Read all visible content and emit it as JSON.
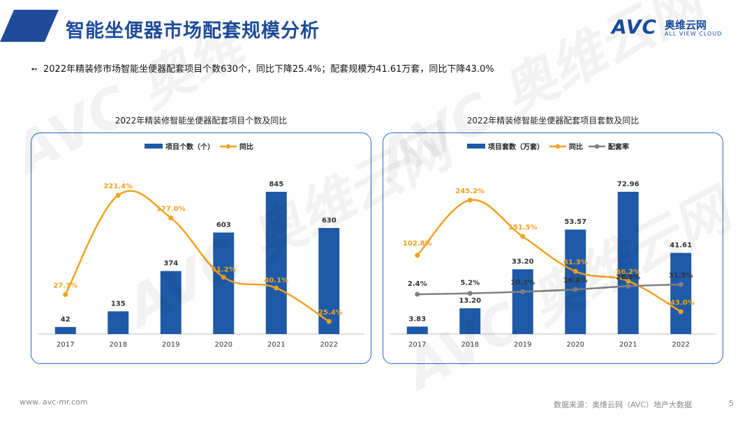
{
  "slide": {
    "title": "智能坐便器市场配套规模分析",
    "summary": "2022年精装修市场智能坐便器配套项目个数630个，同比下降25.4%；配套规模为41.61万套，同比下降43.0%",
    "bullet_icon": "arrow-bullet-icon",
    "logo": {
      "brand": "AVC",
      "cn": "奥维云网",
      "en": "ALL VIEW CLOUD"
    },
    "footer_url": "www. avc-mr.com",
    "footer_source": "数据来源：奥维云网（AVC）地产大数据",
    "page_number": "5",
    "colors": {
      "title": "#1e4c9a",
      "bar": "#1f5aa8",
      "line_orange": "#f0a21f",
      "line_grey": "#808080",
      "border": "#2a67c7"
    }
  },
  "chart_data": [
    {
      "type": "bar",
      "title": "2022年精装修智能坐便器配套项目个数及同比",
      "categories": [
        "2017",
        "2018",
        "2019",
        "2020",
        "2021",
        "2022"
      ],
      "series": [
        {
          "name": "项目个数（个）",
          "kind": "bar",
          "values": [
            42,
            135,
            374,
            603,
            845,
            630
          ],
          "labels": [
            "42",
            "135",
            "374",
            "603",
            "845",
            "630"
          ]
        },
        {
          "name": "同比",
          "kind": "line",
          "values": [
            27.3,
            221.4,
            177.0,
            61.2,
            40.1,
            -25.4
          ],
          "labels": [
            "27.3%",
            "221.4%",
            "177.0%",
            "61.2%",
            "40.1%",
            "-25.4%"
          ]
        }
      ],
      "legend": "top-center"
    },
    {
      "type": "bar",
      "title": "2022年精装修智能坐便器配套项目套数及同比",
      "categories": [
        "2017",
        "2018",
        "2019",
        "2020",
        "2021",
        "2022"
      ],
      "series": [
        {
          "name": "项目套数（万套）",
          "kind": "bar",
          "values": [
            3.83,
            13.2,
            33.2,
            53.57,
            72.96,
            41.61
          ],
          "labels": [
            "3.83",
            "13.20",
            "33.20",
            "53.57",
            "72.96",
            "41.61"
          ]
        },
        {
          "name": "同比",
          "kind": "line",
          "values": [
            102.8,
            245.2,
            151.5,
            61.3,
            36.2,
            -43.0
          ],
          "labels": [
            "102.8%",
            "245.2%",
            "151.5%",
            "61.3%",
            "36.2%",
            "-43.0%"
          ]
        },
        {
          "name": "配套率",
          "kind": "line",
          "values": [
            2.4,
            5.2,
            10.2,
            16.8,
            26.5,
            31.5
          ],
          "labels": [
            "2.4%",
            "5.2%",
            "10.2%",
            "16.8%",
            "26.5%",
            "31.5%"
          ]
        }
      ],
      "legend": "top-center"
    }
  ]
}
